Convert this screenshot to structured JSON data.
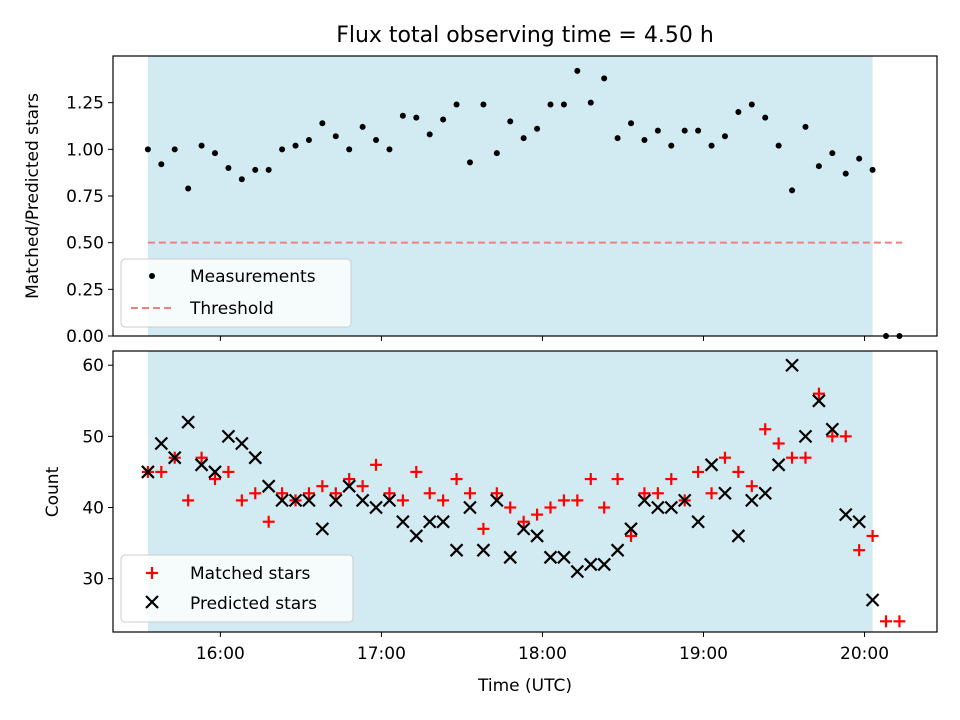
{
  "chart_data": [
    {
      "type": "scatter",
      "title": "Flux total observing time = 4.50 h",
      "ylabel": "Matched/Predicted stars",
      "xlim": [
        "15:20",
        "20:27"
      ],
      "ylim": [
        0.0,
        1.5
      ],
      "y_ticks": [
        "0.00",
        "0.25",
        "0.50",
        "0.75",
        "1.00",
        "1.25"
      ],
      "y_tick_values": [
        0.0,
        0.25,
        0.5,
        0.75,
        1.0,
        1.25
      ],
      "observing_window": [
        "15:33",
        "20:03"
      ],
      "legend": {
        "position": "lower-left",
        "entries": [
          "Measurements",
          "Threshold"
        ]
      },
      "threshold": {
        "name": "Threshold",
        "value": 0.5,
        "x_range": [
          "15:33",
          "20:14"
        ],
        "color": "#f08080"
      },
      "series": [
        {
          "name": "Measurements",
          "marker": "dot",
          "color": "#000000",
          "x": [
            "15:33",
            "15:38",
            "15:43",
            "15:48",
            "15:53",
            "15:58",
            "16:03",
            "16:08",
            "16:13",
            "16:18",
            "16:23",
            "16:28",
            "16:33",
            "16:38",
            "16:43",
            "16:48",
            "16:53",
            "16:58",
            "17:03",
            "17:08",
            "17:13",
            "17:18",
            "17:23",
            "17:28",
            "17:33",
            "17:38",
            "17:43",
            "17:48",
            "17:53",
            "17:58",
            "18:03",
            "18:08",
            "18:13",
            "18:18",
            "18:23",
            "18:28",
            "18:33",
            "18:38",
            "18:43",
            "18:48",
            "18:53",
            "18:58",
            "19:03",
            "19:08",
            "19:13",
            "19:18",
            "19:23",
            "19:28",
            "19:33",
            "19:38",
            "19:43",
            "19:48",
            "19:53",
            "19:58",
            "20:03",
            "20:08",
            "20:13"
          ],
          "y": [
            1.0,
            0.92,
            1.0,
            0.79,
            1.02,
            0.98,
            0.9,
            0.84,
            0.89,
            0.89,
            1.0,
            1.02,
            1.05,
            1.14,
            1.07,
            1.0,
            1.12,
            1.05,
            1.0,
            1.18,
            1.17,
            1.08,
            1.16,
            1.24,
            0.93,
            1.24,
            0.98,
            1.15,
            1.06,
            1.11,
            1.24,
            1.24,
            1.42,
            1.25,
            1.38,
            1.06,
            1.14,
            1.05,
            1.1,
            1.02,
            1.1,
            1.1,
            1.02,
            1.07,
            1.2,
            1.24,
            1.17,
            1.02,
            0.78,
            1.12,
            0.91,
            0.98,
            0.87,
            0.95,
            0.89,
            0.0,
            0.0
          ]
        }
      ]
    },
    {
      "type": "scatter",
      "xlabel": "Time (UTC)",
      "ylabel": "Count",
      "xlim": [
        "15:20",
        "20:27"
      ],
      "ylim": [
        22.5,
        62
      ],
      "x_ticks": [
        "16:00",
        "17:00",
        "18:00",
        "19:00",
        "20:00"
      ],
      "y_ticks": [
        "30",
        "40",
        "50",
        "60"
      ],
      "y_tick_values": [
        30,
        40,
        50,
        60
      ],
      "observing_window": [
        "15:33",
        "20:03"
      ],
      "legend": {
        "position": "lower-left",
        "entries": [
          "Matched stars",
          "Predicted stars"
        ]
      },
      "x": [
        "15:33",
        "15:38",
        "15:43",
        "15:48",
        "15:53",
        "15:58",
        "16:03",
        "16:08",
        "16:13",
        "16:18",
        "16:23",
        "16:28",
        "16:33",
        "16:38",
        "16:43",
        "16:48",
        "16:53",
        "16:58",
        "17:03",
        "17:08",
        "17:13",
        "17:18",
        "17:23",
        "17:28",
        "17:33",
        "17:38",
        "17:43",
        "17:48",
        "17:53",
        "17:58",
        "18:03",
        "18:08",
        "18:13",
        "18:18",
        "18:23",
        "18:28",
        "18:33",
        "18:38",
        "18:43",
        "18:48",
        "18:53",
        "18:58",
        "19:03",
        "19:08",
        "19:13",
        "19:18",
        "19:23",
        "19:28",
        "19:33",
        "19:38",
        "19:43",
        "19:48",
        "19:53",
        "19:58",
        "20:03",
        "20:08",
        "20:13"
      ],
      "series": [
        {
          "name": "Matched stars",
          "marker": "plus",
          "color": "#ff0000",
          "values": [
            45,
            45,
            47,
            41,
            47,
            44,
            45,
            41,
            42,
            38,
            42,
            41,
            42,
            43,
            42,
            44,
            43,
            46,
            42,
            41,
            45,
            42,
            41,
            44,
            42,
            37,
            42,
            40,
            38,
            39,
            40,
            41,
            41,
            44,
            40,
            44,
            36,
            42,
            42,
            44,
            41,
            45,
            42,
            47,
            45,
            43,
            51,
            49,
            47,
            47,
            56,
            50,
            50,
            34,
            36,
            24,
            24
          ]
        },
        {
          "name": "Predicted stars",
          "marker": "x",
          "color": "#000000",
          "values": [
            45,
            49,
            47,
            52,
            46,
            45,
            50,
            49,
            47,
            43,
            41,
            41,
            41,
            37,
            41,
            43,
            41,
            40,
            41,
            38,
            36,
            38,
            38,
            34,
            40,
            34,
            41,
            33,
            37,
            36,
            33,
            33,
            31,
            32,
            32,
            34,
            37,
            41,
            40,
            40,
            41,
            38,
            46,
            42,
            36,
            41,
            42,
            46,
            60,
            50,
            55,
            51,
            39,
            38,
            27,
            null,
            null
          ]
        }
      ]
    }
  ]
}
